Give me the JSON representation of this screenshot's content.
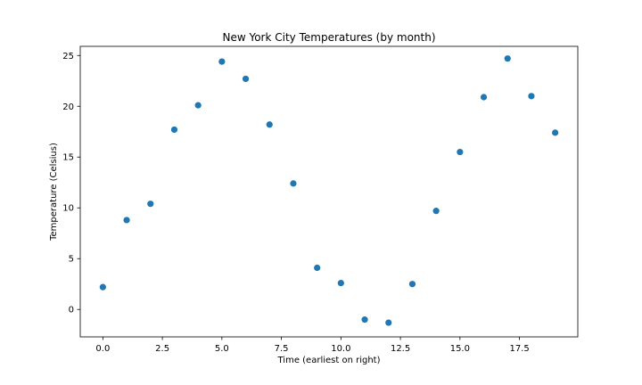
{
  "chart_data": {
    "type": "scatter",
    "title": "New York City Temperatures (by month)",
    "xlabel": "Time (earliest on right)",
    "ylabel": "Temperature (Celsius)",
    "xlim": [
      -0.95,
      19.95
    ],
    "ylim": [
      -2.7,
      25.9
    ],
    "xticks": [
      0.0,
      2.5,
      5.0,
      7.5,
      10.0,
      12.5,
      15.0,
      17.5
    ],
    "xtick_labels": [
      "0.0",
      "2.5",
      "5.0",
      "7.5",
      "10.0",
      "12.5",
      "15.0",
      "17.5"
    ],
    "yticks": [
      0,
      5,
      10,
      15,
      20,
      25
    ],
    "ytick_labels": [
      "0",
      "5",
      "10",
      "15",
      "20",
      "25"
    ],
    "grid": false,
    "marker_color": "#1f77b4",
    "series": [
      {
        "x": [
          0,
          1,
          2,
          3,
          4,
          5,
          6,
          7,
          8,
          9,
          10,
          11,
          12,
          13,
          14,
          15,
          16,
          17,
          18,
          19
        ],
        "y": [
          2.2,
          8.8,
          10.4,
          17.7,
          20.1,
          24.4,
          22.7,
          18.2,
          12.4,
          4.1,
          2.6,
          -1.0,
          -1.3,
          2.5,
          9.7,
          15.5,
          20.9,
          24.7,
          21.0,
          17.4
        ]
      }
    ]
  }
}
